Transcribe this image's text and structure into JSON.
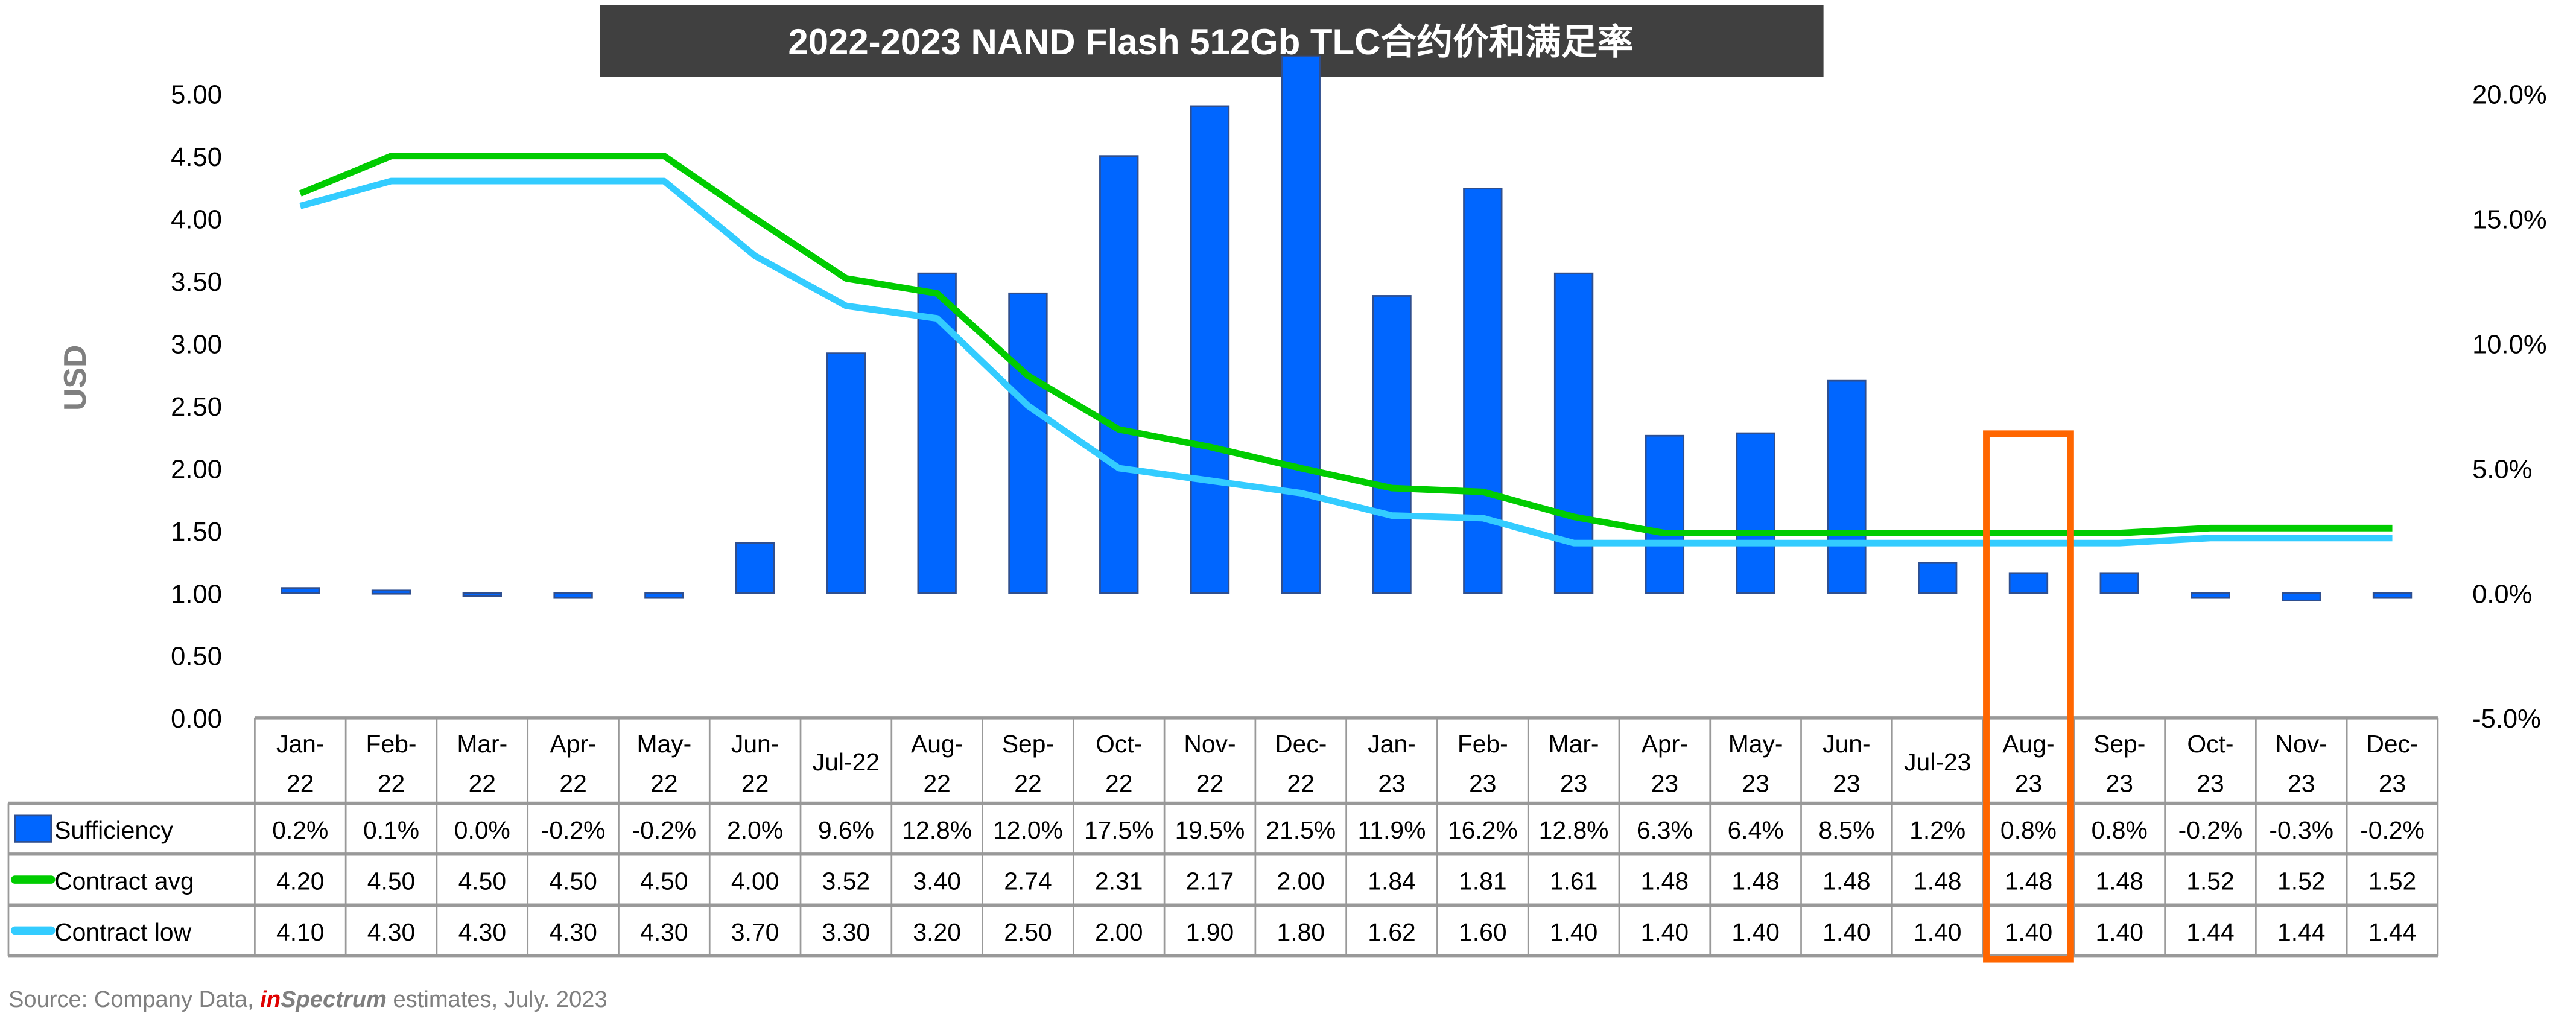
{
  "chart_data": {
    "type": "bar+line",
    "title": "2022-2023  NAND Flash 512Gb TLC合约价和满足率",
    "ylabel": "USD",
    "ylim": [
      0,
      5
    ],
    "y2lim": [
      -5,
      20
    ],
    "y_ticks": [
      "0.00",
      "0.50",
      "1.00",
      "1.50",
      "2.00",
      "2.50",
      "3.00",
      "3.50",
      "4.00",
      "4.50",
      "5.00"
    ],
    "y2_ticks": [
      "-5.0%",
      "0.0%",
      "5.0%",
      "10.0%",
      "15.0%",
      "20.0%"
    ],
    "categories": [
      [
        "Jan-",
        "22"
      ],
      [
        "Feb-",
        "22"
      ],
      [
        "Mar-",
        "22"
      ],
      [
        "Apr-",
        "22"
      ],
      [
        "May-",
        "22"
      ],
      [
        "Jun-",
        "22"
      ],
      [
        "Jul-22",
        ""
      ],
      [
        "Aug-",
        "22"
      ],
      [
        "Sep-",
        "22"
      ],
      [
        "Oct-",
        "22"
      ],
      [
        "Nov-",
        "22"
      ],
      [
        "Dec-",
        "22"
      ],
      [
        "Jan-",
        "23"
      ],
      [
        "Feb-",
        "23"
      ],
      [
        "Mar-",
        "23"
      ],
      [
        "Apr-",
        "23"
      ],
      [
        "May-",
        "23"
      ],
      [
        "Jun-",
        "23"
      ],
      [
        "Jul-23",
        ""
      ],
      [
        "Aug-",
        "23"
      ],
      [
        "Sep-",
        "23"
      ],
      [
        "Oct-",
        "23"
      ],
      [
        "Nov-",
        "23"
      ],
      [
        "Dec-",
        "23"
      ]
    ],
    "series": [
      {
        "name": "Sufficiency",
        "type": "bar",
        "axis": "right",
        "color": "#0066FF",
        "values": [
          0.2,
          0.1,
          0.0,
          -0.2,
          -0.2,
          2.0,
          9.6,
          12.8,
          12.0,
          17.5,
          19.5,
          21.5,
          11.9,
          16.2,
          12.8,
          6.3,
          6.4,
          8.5,
          1.2,
          0.8,
          0.8,
          -0.2,
          -0.3,
          -0.2
        ],
        "labels": [
          "0.2%",
          "0.1%",
          "0.0%",
          "-0.2%",
          "-0.2%",
          "2.0%",
          "9.6%",
          "12.8%",
          "12.0%",
          "17.5%",
          "19.5%",
          "21.5%",
          "11.9%",
          "16.2%",
          "12.8%",
          "6.3%",
          "6.4%",
          "8.5%",
          "1.2%",
          "0.8%",
          "0.8%",
          "-0.2%",
          "-0.3%",
          "-0.2%"
        ]
      },
      {
        "name": "Contract avg",
        "type": "line",
        "axis": "left",
        "color": "#00CC00",
        "values": [
          4.2,
          4.5,
          4.5,
          4.5,
          4.5,
          4.0,
          3.52,
          3.4,
          2.74,
          2.31,
          2.17,
          2.0,
          1.84,
          1.81,
          1.61,
          1.48,
          1.48,
          1.48,
          1.48,
          1.48,
          1.48,
          1.52,
          1.52,
          1.52
        ],
        "labels": [
          "4.20",
          "4.50",
          "4.50",
          "4.50",
          "4.50",
          "4.00",
          "3.52",
          "3.40",
          "2.74",
          "2.31",
          "2.17",
          "2.00",
          "1.84",
          "1.81",
          "1.61",
          "1.48",
          "1.48",
          "1.48",
          "1.48",
          "1.48",
          "1.48",
          "1.52",
          "1.52",
          "1.52"
        ]
      },
      {
        "name": "Contract low",
        "type": "line",
        "axis": "left",
        "color": "#33CCFF",
        "values": [
          4.1,
          4.3,
          4.3,
          4.3,
          4.3,
          3.7,
          3.3,
          3.2,
          2.5,
          2.0,
          1.9,
          1.8,
          1.62,
          1.6,
          1.4,
          1.4,
          1.4,
          1.4,
          1.4,
          1.4,
          1.4,
          1.44,
          1.44,
          1.44
        ],
        "labels": [
          "4.10",
          "4.30",
          "4.30",
          "4.30",
          "4.30",
          "3.70",
          "3.30",
          "3.20",
          "2.50",
          "2.00",
          "1.90",
          "1.80",
          "1.62",
          "1.60",
          "1.40",
          "1.40",
          "1.40",
          "1.40",
          "1.40",
          "1.40",
          "1.40",
          "1.44",
          "1.44",
          "1.44"
        ]
      }
    ],
    "highlight_index": 19,
    "highlight_color": "#FF6600",
    "legend": "data-table"
  },
  "source": {
    "prefix": "Source: Company Data, ",
    "brand_in": "in",
    "brand_spectrum": "Spectrum",
    "suffix": " estimates,  July. 2023"
  }
}
